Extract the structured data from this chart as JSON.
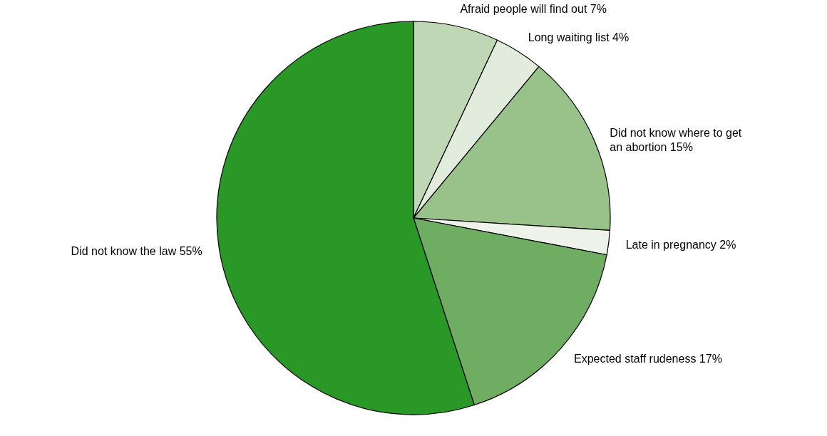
{
  "chart_data": {
    "type": "pie",
    "categories": [
      "Afraid people will find out 7%",
      "Long waiting list 4%",
      "Did not know where to get an abortion 15%",
      "Late in pregnancy 2%",
      "Expected staff rudeness 17%",
      "Did not know the law 55%"
    ],
    "values": [
      7,
      4,
      15,
      2,
      17,
      55
    ],
    "colors": [
      "#bfd7b5",
      "#e2ecdc",
      "#98c28a",
      "#eef3ea",
      "#6fae62",
      "#2a9826"
    ],
    "legend": false
  }
}
